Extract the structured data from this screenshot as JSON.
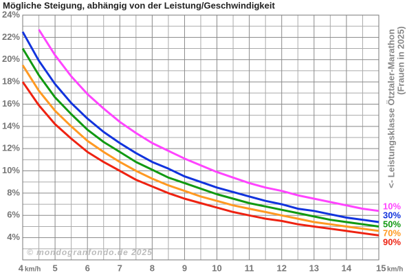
{
  "chart_data": {
    "type": "line",
    "title": "Mögliche Steigung, abhängig von der Leistung/Geschwindigkeit",
    "y_label": "<- Leistungsklasse Ötztaler-Marathon",
    "y_label_sub": "(Frauen in 2025)",
    "x_unit": "km/h",
    "watermark": "© mondogranfondo.de 2025",
    "x": [
      4,
      4.5,
      5,
      5.5,
      6,
      6.5,
      7,
      7.5,
      8,
      8.5,
      9,
      9.5,
      10,
      10.5,
      11,
      11.5,
      12,
      12.5,
      13,
      13.5,
      14,
      14.5,
      15
    ],
    "series": [
      {
        "name": "10%",
        "color": "#ff44ff",
        "values": [
          null,
          22.7,
          20.4,
          18.5,
          16.9,
          15.6,
          14.4,
          13.4,
          12.5,
          11.8,
          11.1,
          10.5,
          9.9,
          9.4,
          8.9,
          8.5,
          8.2,
          7.8,
          7.5,
          7.2,
          6.9,
          6.6,
          6.4
        ]
      },
      {
        "name": "30%",
        "color": "#1133dd",
        "values": [
          22.5,
          19.9,
          17.8,
          16.1,
          14.7,
          13.5,
          12.5,
          11.6,
          10.8,
          10.2,
          9.5,
          9.0,
          8.5,
          8.1,
          7.7,
          7.3,
          7.0,
          6.6,
          6.4,
          6.1,
          5.8,
          5.6,
          5.4
        ]
      },
      {
        "name": "50%",
        "color": "#119911",
        "values": [
          21.0,
          18.6,
          16.6,
          15.1,
          13.7,
          12.6,
          11.7,
          10.8,
          10.1,
          9.4,
          8.9,
          8.4,
          7.9,
          7.5,
          7.1,
          6.8,
          6.5,
          6.2,
          5.9,
          5.6,
          5.4,
          5.2,
          5.0
        ]
      },
      {
        "name": "70%",
        "color": "#ff9922",
        "values": [
          19.5,
          17.2,
          15.4,
          14.0,
          12.7,
          11.7,
          10.8,
          10.0,
          9.3,
          8.7,
          8.2,
          7.7,
          7.3,
          6.9,
          6.6,
          6.3,
          6.0,
          5.7,
          5.4,
          5.2,
          5.0,
          4.8,
          4.6
        ]
      },
      {
        "name": "90%",
        "color": "#ee2211",
        "values": [
          18.0,
          15.9,
          14.2,
          12.9,
          11.7,
          10.8,
          10.0,
          9.2,
          8.6,
          8.0,
          7.5,
          7.1,
          6.7,
          6.3,
          6.0,
          5.7,
          5.5,
          5.2,
          5.0,
          4.8,
          4.6,
          4.4,
          4.2
        ]
      }
    ],
    "xlim": [
      4,
      15
    ],
    "ylim": [
      2,
      24
    ],
    "xticks": [
      4,
      5,
      6,
      7,
      8,
      9,
      10,
      11,
      12,
      13,
      14,
      15
    ],
    "yticks": [
      {
        "value": 4,
        "label": "4%"
      },
      {
        "value": 6,
        "label": "6%"
      },
      {
        "value": 8,
        "label": "8%"
      },
      {
        "value": 10,
        "label": "10%"
      },
      {
        "value": 12,
        "label": "12%"
      },
      {
        "value": 14,
        "label": "14%"
      },
      {
        "value": 16,
        "label": "16%"
      },
      {
        "value": 18,
        "label": "18%"
      },
      {
        "value": 20,
        "label": "20%"
      },
      {
        "value": 22,
        "label": "22%"
      },
      {
        "value": 24,
        "label": "24%"
      }
    ],
    "x_minor_ticks": [
      4.5,
      5.5,
      6.5,
      7.5,
      8.5,
      9.5,
      10.5,
      11.5,
      12.5,
      13.5,
      14.5
    ],
    "y_minor_ticks": [
      2,
      3,
      5,
      7,
      9,
      11,
      13,
      15,
      17,
      19,
      21,
      23
    ],
    "grid": true
  }
}
